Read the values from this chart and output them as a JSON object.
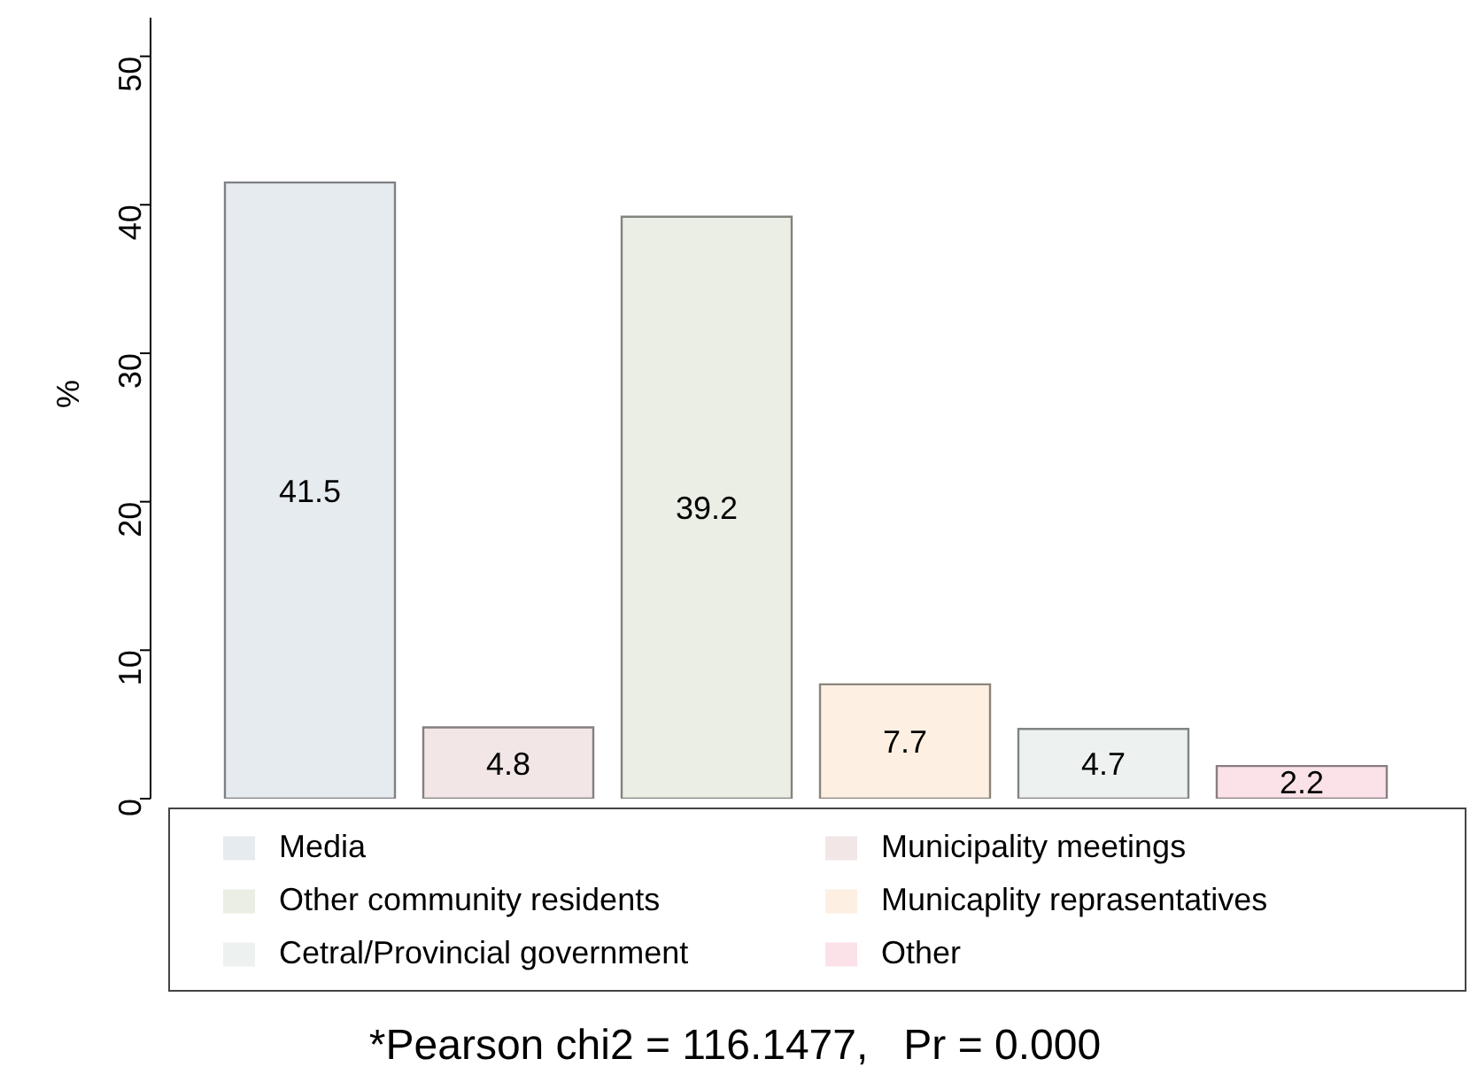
{
  "chart_data": {
    "type": "bar",
    "ylabel": "%",
    "categories": [
      null
    ],
    "series": [
      {
        "name": "Media",
        "color": "#e6ebf0",
        "values": [
          41.5
        ]
      },
      {
        "name": "Municipality meetings",
        "color": "#f2e6e6",
        "values": [
          4.8
        ]
      },
      {
        "name": "Other community residents",
        "color": "#ebeee4",
        "values": [
          39.2
        ]
      },
      {
        "name": "Municaplity reprasentatives",
        "color": "#fdf0e2",
        "values": [
          7.7
        ]
      },
      {
        "name": "Cetral/Provincial government",
        "color": "#edf1ef",
        "values": [
          4.7
        ]
      },
      {
        "name": "Other",
        "color": "#fbe2e8",
        "values": [
          2.2
        ]
      }
    ],
    "ylim": [
      0,
      52.6
    ],
    "yticks": [
      0,
      10,
      20,
      30,
      40,
      50
    ],
    "grid": false,
    "legend": "bottom",
    "tick_labels": "y",
    "data_labels": true,
    "annotations": [
      "*Pearson chi2 = 116.1477,   Pr = 0.000"
    ]
  }
}
